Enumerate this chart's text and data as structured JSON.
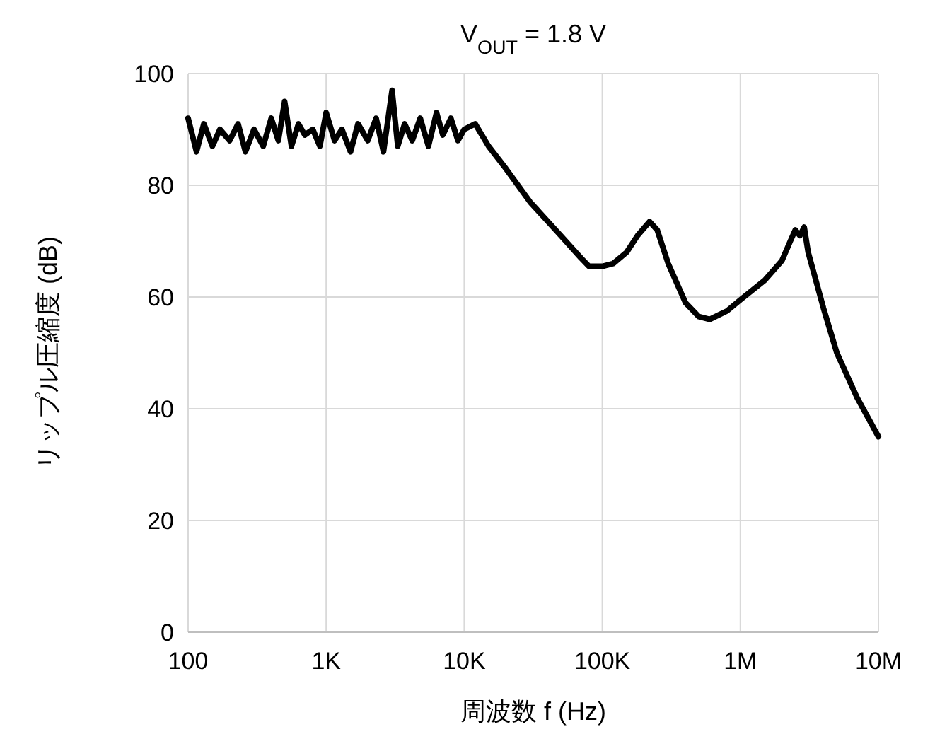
{
  "chart_data": {
    "type": "line",
    "title": "V$_{OUT}$ = 1.8 V",
    "xlabel": "周波数 f (Hz)",
    "ylabel": "リップル圧縮度 (dB)",
    "log": "x",
    "grid": true,
    "line_style": "solid",
    "marker": "none",
    "xlim": [
      100,
      10000000
    ],
    "ylim": [
      0,
      100
    ],
    "xticks": [
      {
        "value": 100,
        "label": "100"
      },
      {
        "value": 1000,
        "label": "1K"
      },
      {
        "value": 10000,
        "label": "10K"
      },
      {
        "value": 100000,
        "label": "100K"
      },
      {
        "value": 1000000,
        "label": "1M"
      },
      {
        "value": 10000000,
        "label": "10M"
      }
    ],
    "yticks": [
      0,
      20,
      40,
      60,
      80,
      100
    ],
    "series": [
      {
        "color": "#000000",
        "x": [
          100,
          115,
          130,
          150,
          170,
          200,
          230,
          260,
          300,
          350,
          400,
          450,
          500,
          560,
          630,
          700,
          800,
          900,
          1000,
          1150,
          1300,
          1500,
          1700,
          2000,
          2300,
          2600,
          3000,
          3300,
          3700,
          4200,
          4800,
          5500,
          6300,
          7000,
          8000,
          9000,
          10000,
          12000,
          15000,
          20000,
          30000,
          50000,
          70000,
          80000,
          100000,
          120000,
          150000,
          180000,
          220000,
          250000,
          300000,
          400000,
          500000,
          600000,
          800000,
          1000000,
          1500000,
          2000000,
          2300000,
          2500000,
          2700000,
          2900000,
          3100000,
          4000000,
          5000000,
          7000000,
          10000000
        ],
        "values": [
          92,
          86,
          91,
          87,
          90,
          88,
          91,
          86,
          90,
          87,
          92,
          88,
          95,
          87,
          91,
          89,
          90,
          87,
          93,
          88,
          90,
          86,
          91,
          88,
          92,
          86,
          97,
          87,
          91,
          88,
          92,
          87,
          93,
          89,
          92,
          88,
          90,
          91,
          87,
          83,
          77,
          71,
          67,
          65.5,
          65.5,
          66,
          68,
          71,
          73.5,
          72,
          66,
          59,
          56.5,
          56,
          57.5,
          59.5,
          63,
          66.5,
          70,
          72,
          71,
          72.5,
          68,
          58,
          50,
          42,
          35
        ]
      }
    ]
  }
}
